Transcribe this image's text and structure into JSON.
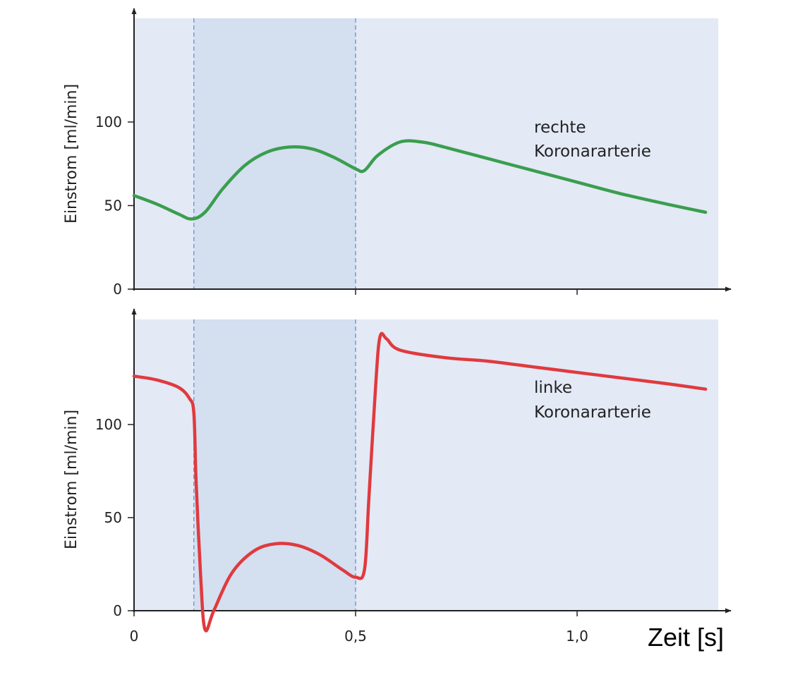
{
  "chart_data": [
    {
      "type": "line",
      "title": "",
      "ylabel": "Einstrom [ml/min]",
      "ylim": [
        0,
        150
      ],
      "yticks": [
        0,
        50,
        100
      ],
      "xlim": [
        0,
        1.32
      ],
      "annotation": [
        "rechte",
        "Koronararterie"
      ],
      "shaded_interval": [
        0.135,
        0.5
      ],
      "colors": {
        "line": "#3a9e4e",
        "plot_bg": "#e3e9f5",
        "shade": "#d4dff0"
      },
      "series": [
        {
          "x": [
            0,
            0.05,
            0.1,
            0.13,
            0.16,
            0.2,
            0.25,
            0.3,
            0.35,
            0.4,
            0.45,
            0.5,
            0.52,
            0.55,
            0.6,
            0.65,
            0.7,
            0.8,
            0.9,
            1.0,
            1.1,
            1.2,
            1.29
          ],
          "y": [
            56,
            51,
            45,
            42,
            46,
            60,
            74,
            82,
            85,
            84,
            79,
            72,
            71,
            80,
            88,
            88,
            85,
            78,
            71,
            64,
            57,
            51,
            46
          ]
        }
      ]
    },
    {
      "type": "line",
      "title": "",
      "ylabel": "Einstrom [ml/min]",
      "ylim": [
        0,
        150
      ],
      "yticks": [
        0,
        50,
        100
      ],
      "xlim": [
        0,
        1.32
      ],
      "xticks": [
        0,
        0.5,
        1.0
      ],
      "xticklabels": [
        "0",
        "0,5",
        "1,0"
      ],
      "xlabel": "Zeit [s]",
      "annotation": [
        "linke",
        "Koronararterie"
      ],
      "shaded_interval": [
        0.135,
        0.5
      ],
      "colors": {
        "line": "#e03a3e",
        "plot_bg": "#e3e9f5",
        "shade": "#d4dff0"
      },
      "series": [
        {
          "x": [
            0,
            0.05,
            0.1,
            0.125,
            0.135,
            0.14,
            0.15,
            0.16,
            0.18,
            0.22,
            0.27,
            0.32,
            0.37,
            0.42,
            0.47,
            0.5,
            0.52,
            0.53,
            0.545,
            0.555,
            0.57,
            0.6,
            0.7,
            0.8,
            0.9,
            1.0,
            1.1,
            1.2,
            1.29
          ],
          "y": [
            126,
            124,
            120,
            114,
            106,
            70,
            20,
            -10,
            0,
            20,
            32,
            36,
            35,
            30,
            22,
            18,
            22,
            60,
            120,
            147,
            146,
            140,
            136,
            134,
            131,
            128,
            125,
            122,
            119
          ]
        }
      ]
    }
  ]
}
